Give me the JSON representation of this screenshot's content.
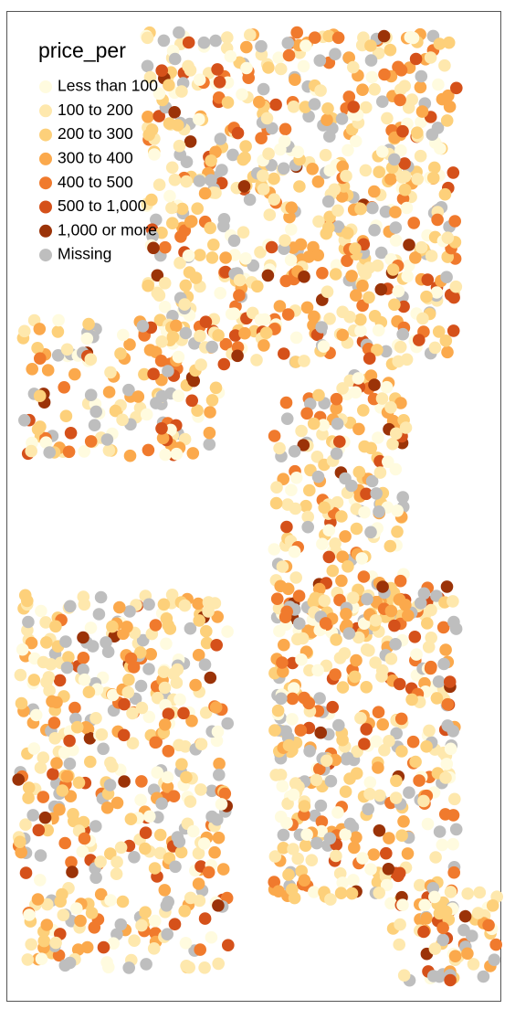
{
  "legend": {
    "title": "price_per",
    "items": [
      {
        "label": "Less than 100",
        "color": "#fffbdf"
      },
      {
        "label": "100 to 200",
        "color": "#fee8ad"
      },
      {
        "label": "200 to 300",
        "color": "#fdd07a"
      },
      {
        "label": "300 to 400",
        "color": "#fba94c"
      },
      {
        "label": "400 to 500",
        "color": "#f07a2d"
      },
      {
        "label": "500 to 1,000",
        "color": "#d5511a"
      },
      {
        "label": "1,000 or more",
        "color": "#9b3308"
      },
      {
        "label": "Missing",
        "color": "#bebebe"
      }
    ]
  }
}
